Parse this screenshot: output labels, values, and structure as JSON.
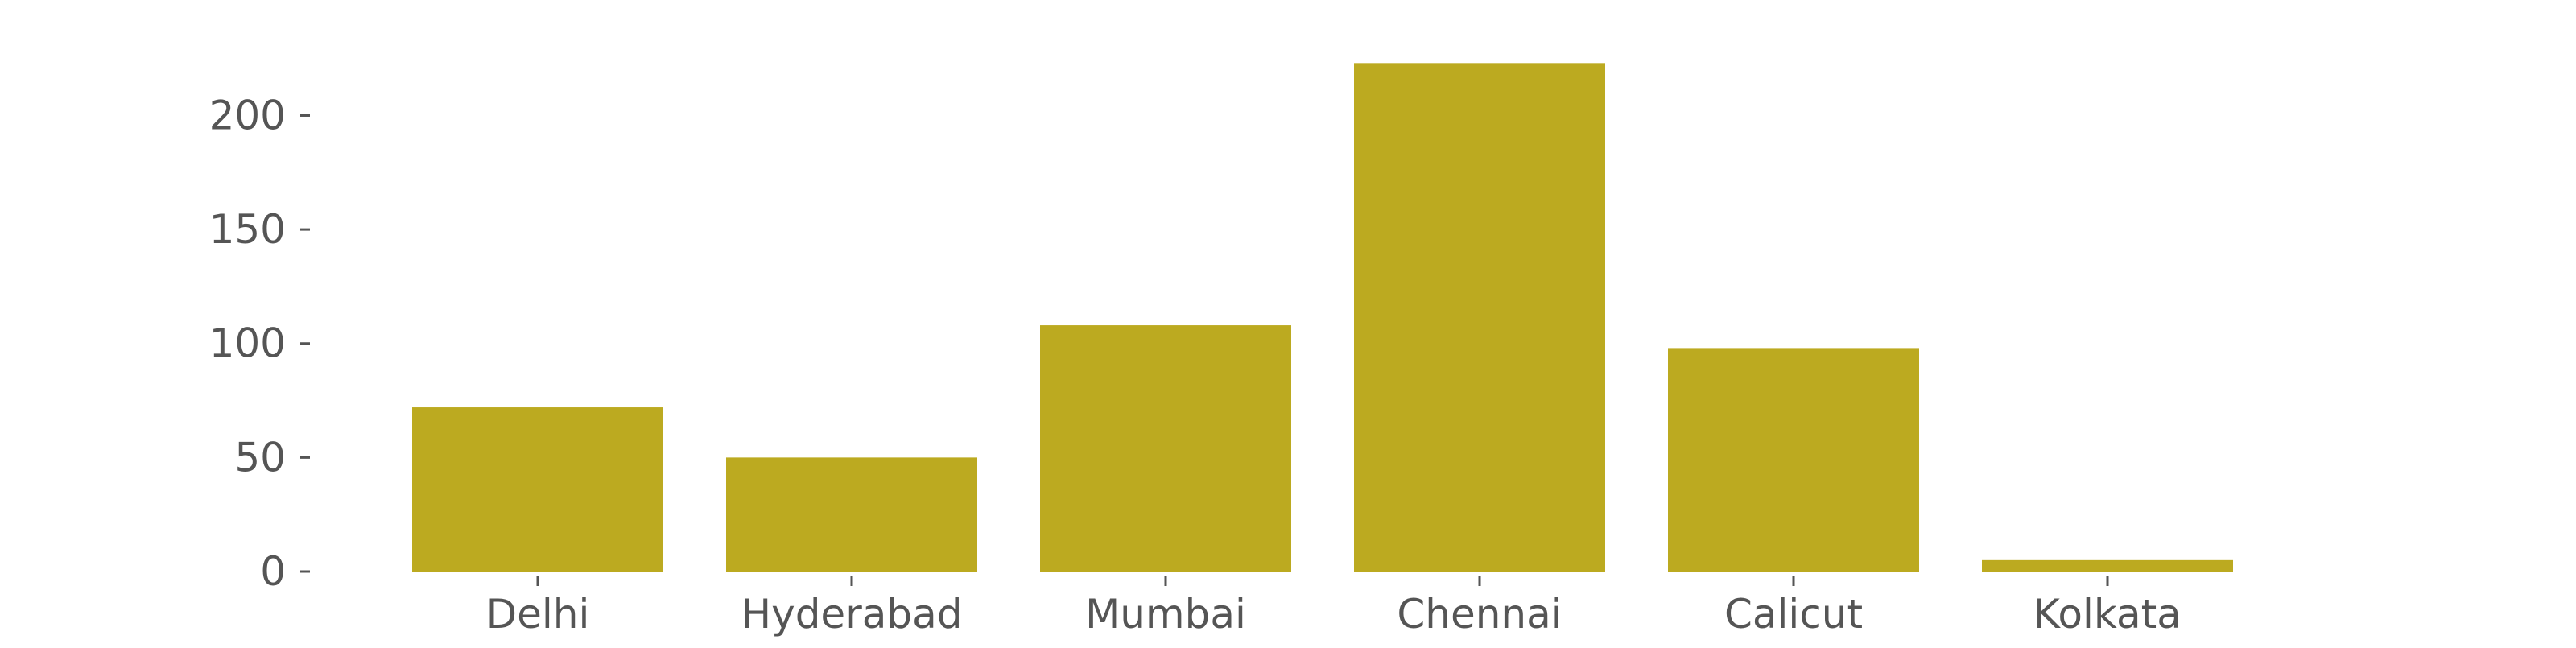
{
  "chart_data": {
    "type": "bar",
    "categories": [
      "Delhi",
      "Hyderabad",
      "Mumbai",
      "Chennai",
      "Calicut",
      "Kolkata"
    ],
    "values": [
      72,
      50,
      108,
      223,
      98,
      5
    ],
    "ylim": [
      0,
      233
    ],
    "yticks": [
      0,
      50,
      100,
      150,
      200
    ],
    "grid": false,
    "title": "",
    "xlabel": "",
    "ylabel": "",
    "colors": {
      "bar": "#bcaa20",
      "text": "#555555",
      "tick": "#555555",
      "background": "#ffffff"
    }
  }
}
